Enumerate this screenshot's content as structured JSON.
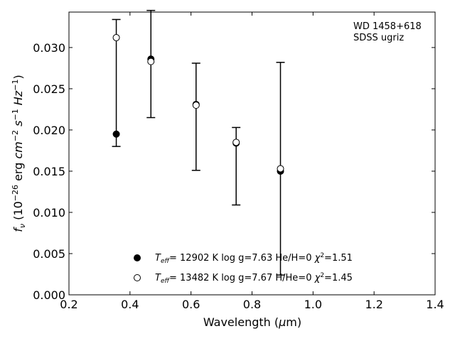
{
  "chart_data": {
    "type": "scatter",
    "title": "",
    "xlabel": "Wavelength (μm)",
    "ylabel": "fν (10⁻²⁶ erg cm⁻² s⁻¹ Hz⁻¹)",
    "xlim": [
      0.2,
      1.4
    ],
    "ylim": [
      0.0,
      0.0343
    ],
    "xticks": [
      0.2,
      0.4,
      0.6,
      0.8,
      1.0,
      1.2,
      1.4
    ],
    "xtick_labels": [
      "0.2",
      "0.4",
      "0.6",
      "0.8",
      "1.0",
      "1.2",
      "1.4"
    ],
    "yticks": [
      0.0,
      0.005,
      0.01,
      0.015,
      0.02,
      0.025,
      0.03
    ],
    "ytick_labels": [
      "0.000",
      "0.005",
      "0.010",
      "0.015",
      "0.020",
      "0.025",
      "0.030"
    ],
    "grid": false,
    "annotations": [
      "WD 1458+618",
      "SDSS ugriz"
    ],
    "observed": {
      "x": [
        0.3551,
        0.4686,
        0.6166,
        0.748,
        0.8932
      ],
      "y": [
        0.0257,
        0.028,
        0.0216,
        0.0156,
        0.0153
      ],
      "yerr": [
        0.0077,
        0.0065,
        0.0065,
        0.0047,
        0.0129
      ]
    },
    "series": [
      {
        "name": "Teff= 12902 K  log g=7.63  He/H=0  χ²=1.51",
        "marker": "filled-circle",
        "x": [
          0.3551,
          0.4686,
          0.6166,
          0.748,
          0.8932
        ],
        "y": [
          0.0195,
          0.0286,
          0.0231,
          0.0184,
          0.015
        ]
      },
      {
        "name": "Teff= 13482 K  log g=7.67  H/He=0  χ²=1.45",
        "marker": "open-circle",
        "x": [
          0.3551,
          0.4686,
          0.6166,
          0.748,
          0.8932
        ],
        "y": [
          0.0312,
          0.0283,
          0.023,
          0.0185,
          0.0153
        ]
      }
    ],
    "legend": {
      "placement": "lower-center",
      "entries": [
        {
          "teff": "= 12902 K",
          "logg": "log g=7.63",
          "comp": "He/H=0",
          "chi": "=1.51"
        },
        {
          "teff": "= 13482 K",
          "logg": "log g=7.67",
          "comp": "H/He=0",
          "chi": "=1.45"
        }
      ]
    }
  }
}
